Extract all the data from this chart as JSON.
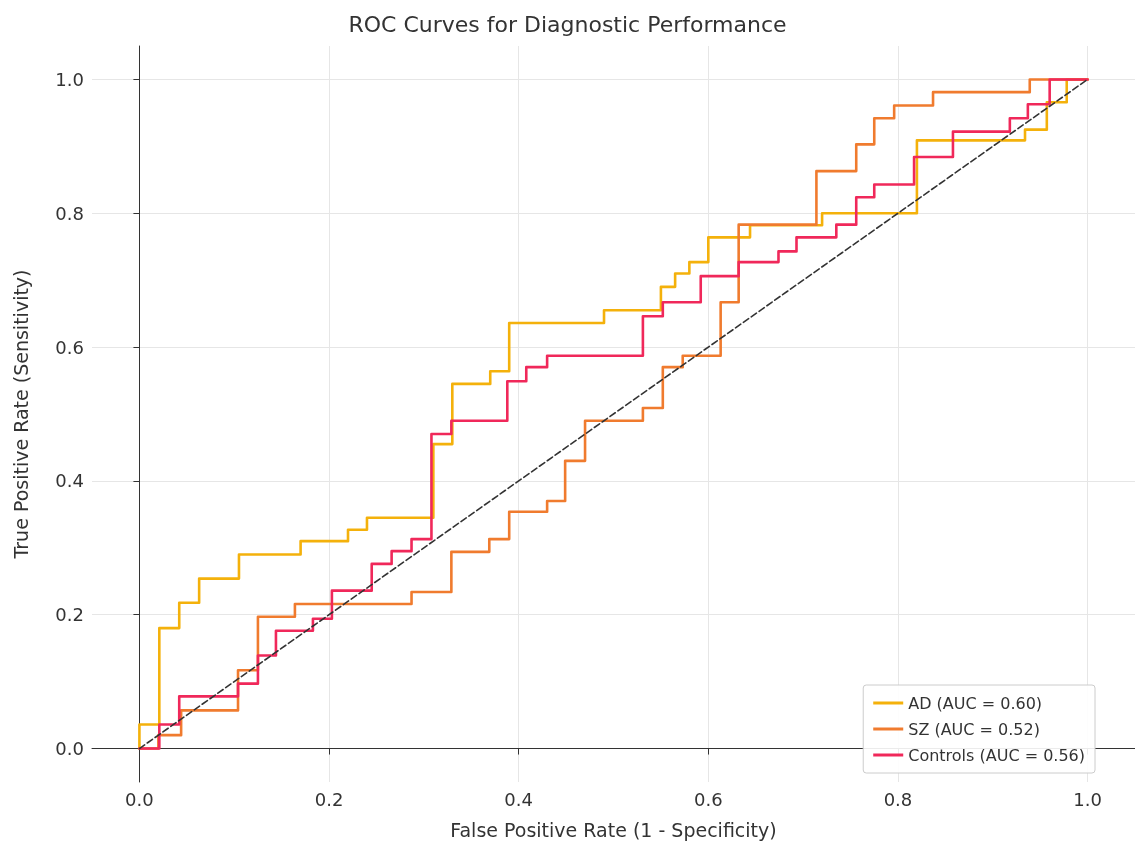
{
  "chart_data": {
    "type": "line",
    "title": "ROC Curves for Diagnostic Performance",
    "xlabel": "False Positive Rate (1 - Specificity)",
    "ylabel": "True Positive Rate (Sensitivity)",
    "xlim": [
      -0.05,
      1.05
    ],
    "ylim": [
      -0.05,
      1.05
    ],
    "xticks": [
      {
        "value": 0,
        "label": "0.0"
      },
      {
        "value": 0.2,
        "label": "0.2"
      },
      {
        "value": 0.4,
        "label": "0.4"
      },
      {
        "value": 0.6,
        "label": "0.6"
      },
      {
        "value": 0.8,
        "label": "0.8"
      },
      {
        "value": 1,
        "label": "1.0"
      }
    ],
    "yticks": [
      {
        "value": 0,
        "label": "0.0"
      },
      {
        "value": 0.2,
        "label": "0.2"
      },
      {
        "value": 0.4,
        "label": "0.4"
      },
      {
        "value": 0.6,
        "label": "0.6"
      },
      {
        "value": 0.8,
        "label": "0.8"
      },
      {
        "value": 1,
        "label": "1.0"
      }
    ],
    "grid": true,
    "legend": "bottom right",
    "marker": "none",
    "line_style": "solid",
    "series": [
      {
        "name": "AD (AUC = 0.60)",
        "color": "#f4b10b",
        "x": [
          0,
          0,
          0.021,
          0.021,
          0.042,
          0.042,
          0.063,
          0.063,
          0.105,
          0.105,
          0.17,
          0.17,
          0.22,
          0.22,
          0.24,
          0.24,
          0.31,
          0.31,
          0.33,
          0.33,
          0.37,
          0.37,
          0.39,
          0.39,
          0.49,
          0.49,
          0.55,
          0.55,
          0.565,
          0.565,
          0.58,
          0.58,
          0.6,
          0.6,
          0.644,
          0.644,
          0.72,
          0.72,
          0.82,
          0.82,
          0.934,
          0.934,
          0.957,
          0.957,
          0.978,
          0.978,
          1
        ],
        "values": [
          0,
          0.036,
          0.036,
          0.18,
          0.18,
          0.218,
          0.218,
          0.254,
          0.254,
          0.29,
          0.29,
          0.31,
          0.31,
          0.327,
          0.327,
          0.345,
          0.345,
          0.455,
          0.455,
          0.545,
          0.545,
          0.564,
          0.564,
          0.636,
          0.636,
          0.655,
          0.655,
          0.69,
          0.69,
          0.71,
          0.71,
          0.727,
          0.727,
          0.764,
          0.764,
          0.782,
          0.782,
          0.8,
          0.8,
          0.909,
          0.909,
          0.925,
          0.925,
          0.966,
          0.966,
          1,
          1
        ]
      },
      {
        "name": "SZ (AUC = 0.52)",
        "color": "#f07b2e",
        "x": [
          0,
          0.02,
          0.02,
          0.044,
          0.044,
          0.104,
          0.104,
          0.125,
          0.125,
          0.164,
          0.164,
          0.287,
          0.287,
          0.329,
          0.329,
          0.369,
          0.369,
          0.39,
          0.39,
          0.43,
          0.43,
          0.449,
          0.449,
          0.47,
          0.47,
          0.531,
          0.531,
          0.552,
          0.552,
          0.573,
          0.573,
          0.613,
          0.613,
          0.632,
          0.632,
          0.714,
          0.714,
          0.756,
          0.756,
          0.775,
          0.775,
          0.796,
          0.796,
          0.837,
          0.837,
          0.939,
          0.939,
          1
        ],
        "values": [
          0,
          0,
          0.02,
          0.02,
          0.057,
          0.057,
          0.117,
          0.117,
          0.197,
          0.197,
          0.216,
          0.216,
          0.234,
          0.234,
          0.294,
          0.294,
          0.313,
          0.313,
          0.354,
          0.354,
          0.37,
          0.37,
          0.43,
          0.43,
          0.49,
          0.49,
          0.509,
          0.509,
          0.57,
          0.57,
          0.587,
          0.587,
          0.667,
          0.667,
          0.783,
          0.783,
          0.863,
          0.863,
          0.903,
          0.903,
          0.942,
          0.942,
          0.961,
          0.961,
          0.981,
          0.981,
          1,
          1
        ]
      },
      {
        "name": "Controls (AUC = 0.56)",
        "color": "#f0285a",
        "x": [
          0,
          0.021,
          0.021,
          0.042,
          0.042,
          0.104,
          0.104,
          0.125,
          0.125,
          0.144,
          0.144,
          0.183,
          0.183,
          0.203,
          0.203,
          0.245,
          0.245,
          0.266,
          0.266,
          0.287,
          0.287,
          0.308,
          0.308,
          0.329,
          0.329,
          0.388,
          0.388,
          0.408,
          0.408,
          0.43,
          0.43,
          0.531,
          0.531,
          0.552,
          0.552,
          0.592,
          0.592,
          0.632,
          0.632,
          0.674,
          0.674,
          0.693,
          0.693,
          0.735,
          0.735,
          0.756,
          0.756,
          0.775,
          0.775,
          0.817,
          0.817,
          0.858,
          0.858,
          0.918,
          0.918,
          0.937,
          0.937,
          0.96,
          0.96,
          1
        ],
        "values": [
          0,
          0,
          0.036,
          0.036,
          0.078,
          0.078,
          0.097,
          0.097,
          0.139,
          0.139,
          0.176,
          0.176,
          0.194,
          0.194,
          0.236,
          0.236,
          0.276,
          0.276,
          0.295,
          0.295,
          0.313,
          0.313,
          0.47,
          0.47,
          0.49,
          0.49,
          0.549,
          0.549,
          0.57,
          0.57,
          0.587,
          0.587,
          0.646,
          0.646,
          0.667,
          0.667,
          0.706,
          0.706,
          0.727,
          0.727,
          0.743,
          0.743,
          0.764,
          0.764,
          0.783,
          0.783,
          0.824,
          0.824,
          0.843,
          0.843,
          0.884,
          0.884,
          0.922,
          0.922,
          0.942,
          0.942,
          0.963,
          0.963,
          1,
          1
        ]
      },
      {
        "color": "#333333",
        "line_style": "dashed",
        "x": [
          0,
          1
        ],
        "values": [
          0,
          1
        ]
      }
    ]
  }
}
